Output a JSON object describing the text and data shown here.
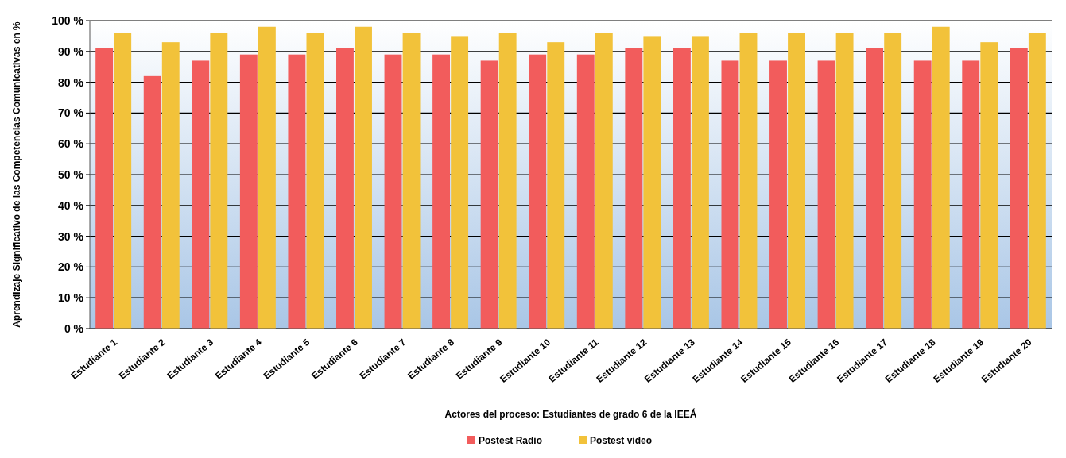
{
  "chart_data": {
    "type": "bar",
    "xlabel": "Actores del proceso: Estudiantes de grado 6 de la IEEÁ",
    "ylabel": "Aprendizaje Significativo de las Competencias Comunicativas en %",
    "categories": [
      "Estudiante 1",
      "Estudiante 2",
      "Estudiante 3",
      "Estudiante 4",
      "Estudiante 5",
      "Estudiante 6",
      "Estudiante 7",
      "Estudiante 8",
      "Estudiante 9",
      "Estudiante 10",
      "Estudiante 11",
      "Estudiante 12",
      "Estudiante 13",
      "Estudiante 14",
      "Estudiante 15",
      "Estudiante 16",
      "Estudiante 17",
      "Estudiante 18",
      "Estudiante 19",
      "Estudiante 20"
    ],
    "series": [
      {
        "name": "Postest Radio",
        "color": "#f25c5c",
        "values": [
          91,
          82,
          87,
          89,
          89,
          91,
          89,
          89,
          87,
          89,
          89,
          91,
          91,
          87,
          87,
          87,
          91,
          87,
          87,
          91
        ]
      },
      {
        "name": "Postest video",
        "color": "#f2c23a",
        "values": [
          96,
          93,
          96,
          98,
          96,
          98,
          96,
          95,
          96,
          93,
          96,
          95,
          95,
          96,
          96,
          96,
          96,
          98,
          93,
          96
        ]
      }
    ],
    "ylim": [
      0,
      100
    ],
    "yticks": [
      {
        "value": 0,
        "label": "0 %"
      },
      {
        "value": 10,
        "label": "10 %"
      },
      {
        "value": 20,
        "label": "20 %"
      },
      {
        "value": 30,
        "label": "30 %"
      },
      {
        "value": 40,
        "label": "40 %"
      },
      {
        "value": 50,
        "label": "50 %"
      },
      {
        "value": 60,
        "label": "60 %"
      },
      {
        "value": 70,
        "label": "70 %"
      },
      {
        "value": 80,
        "label": "80 %"
      },
      {
        "value": 90,
        "label": "90 %"
      },
      {
        "value": 100,
        "label": "100 %"
      }
    ],
    "grid": "y",
    "legend": "bottom"
  }
}
